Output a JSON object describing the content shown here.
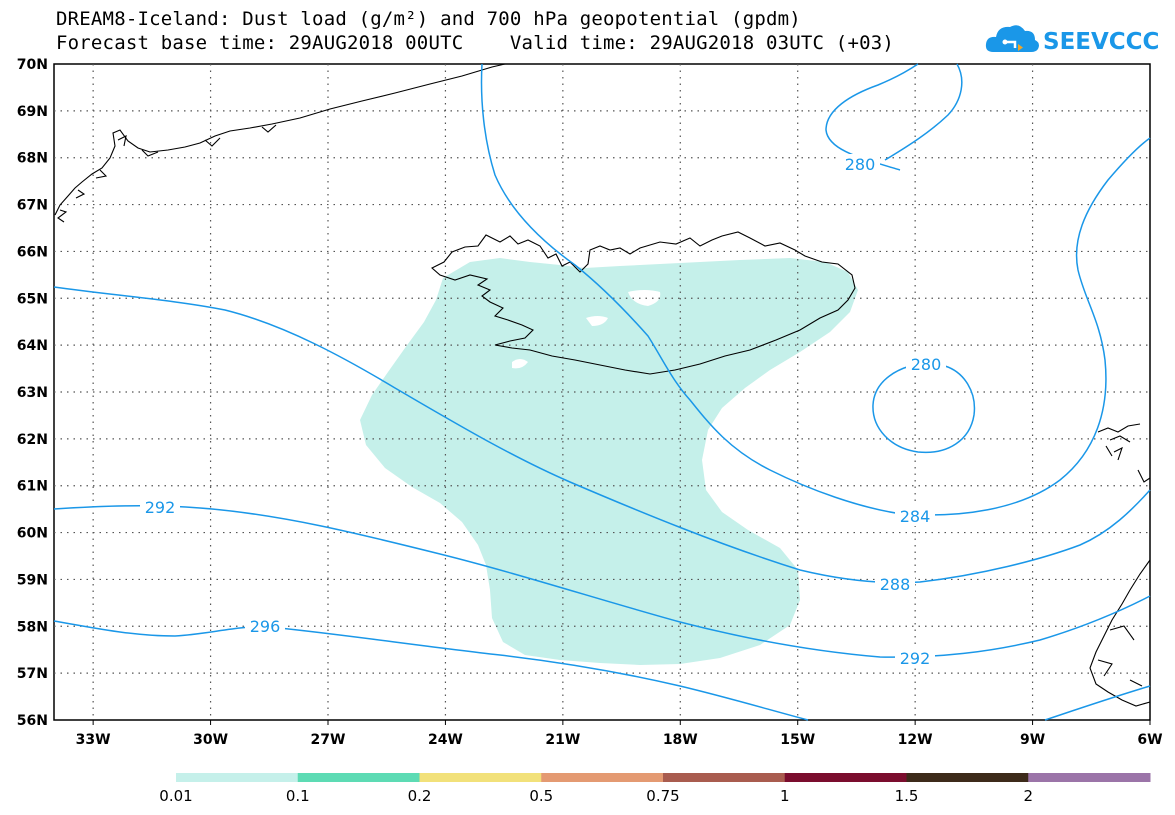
{
  "header": {
    "title_line1": "DREAM8-Iceland: Dust load (g/m²) and 700 hPa geopotential (gpdm)",
    "title_line2": "Forecast base time: 29AUG2018 00UTC    Valid time: 29AUG2018 03UTC (+03)"
  },
  "logo": {
    "text": "SEEVCCC",
    "color": "#1a97e8",
    "icon": "cloud-logo-icon"
  },
  "map": {
    "lon_range": [
      -34,
      -6
    ],
    "lat_range": [
      56,
      70
    ],
    "lon_ticks": [
      -33,
      -30,
      -27,
      -24,
      -21,
      -18,
      -15,
      -12,
      -9,
      -6
    ],
    "lon_labels": [
      "33W",
      "30W",
      "27W",
      "24W",
      "21W",
      "18W",
      "15W",
      "12W",
      "9W",
      "6W"
    ],
    "lat_ticks": [
      70,
      69,
      68,
      67,
      66,
      65,
      64,
      63,
      62,
      61,
      60,
      59,
      58,
      57,
      56
    ],
    "lat_labels": [
      "70N",
      "69N",
      "68N",
      "67N",
      "66N",
      "65N",
      "64N",
      "63N",
      "62N",
      "61N",
      "60N",
      "59N",
      "58N",
      "57N",
      "56N"
    ],
    "gridlines": true,
    "contour_color": "#1a97e8",
    "dust_fill_color": "#c5f0ea",
    "contour_labels": [
      "280",
      "280",
      "284",
      "288",
      "292",
      "292",
      "296"
    ]
  },
  "colorbar": {
    "colors": [
      "#c5f0ea",
      "#5ddbb4",
      "#f2e17a",
      "#e49a72",
      "#a95c4f",
      "#7b0d2e",
      "#3d2a1a",
      "#9b74a8"
    ],
    "labels": [
      "0.01",
      "0.1",
      "0.2",
      "0.5",
      "0.75",
      "1",
      "1.5",
      "2"
    ]
  }
}
